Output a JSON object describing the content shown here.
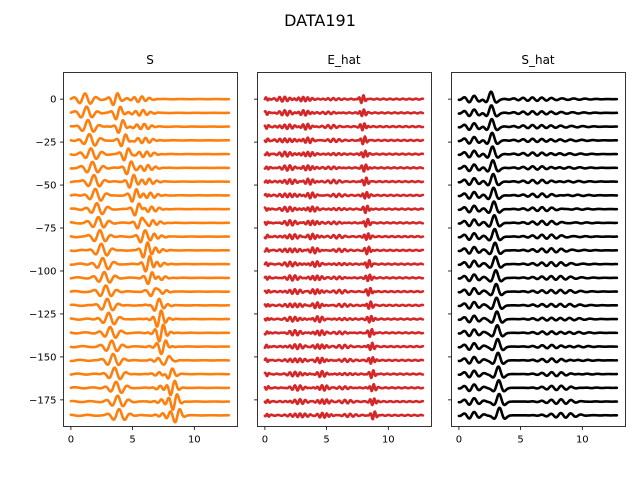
{
  "title": "DATA191",
  "chart_data": [
    {
      "type": "line",
      "title": "S",
      "xlim": [
        -0.6,
        13.5
      ],
      "ylim": [
        -190.5,
        15.5
      ],
      "xticks": [
        0,
        5,
        10
      ],
      "yticks": [
        0,
        -25,
        -50,
        -75,
        -100,
        -125,
        -150,
        -175
      ],
      "ytick_labels": [
        "0",
        "−25",
        "−50",
        "−75",
        "−100",
        "−125",
        "−150",
        "−175"
      ],
      "ytick_labels_visible": true,
      "color": "#ff7f0e",
      "n_traces": 24,
      "trace_spacing": -8,
      "x_range": [
        0,
        12.8
      ],
      "annotation": "24 stacked waveform traces offset by 8 units; two moveout arrivals"
    },
    {
      "type": "line",
      "title": "E_hat",
      "xlim": [
        -0.6,
        13.5
      ],
      "ylim": [
        -190.5,
        15.5
      ],
      "xticks": [
        0,
        5,
        10
      ],
      "yticks": [
        0,
        -25,
        -50,
        -75,
        -100,
        -125,
        -150,
        -175
      ],
      "ytick_labels_visible": false,
      "color": "#d62728",
      "n_traces": 24,
      "trace_spacing": -8,
      "x_range": [
        0,
        12.8
      ]
    },
    {
      "type": "line",
      "title": "S_hat",
      "xlim": [
        -0.6,
        13.5
      ],
      "ylim": [
        -190.5,
        15.5
      ],
      "xticks": [
        0,
        5,
        10
      ],
      "yticks": [
        0,
        -25,
        -50,
        -75,
        -100,
        -125,
        -150,
        -175
      ],
      "ytick_labels_visible": false,
      "color": "#000000",
      "n_traces": 24,
      "trace_spacing": -8,
      "x_range": [
        0,
        12.8
      ]
    }
  ]
}
